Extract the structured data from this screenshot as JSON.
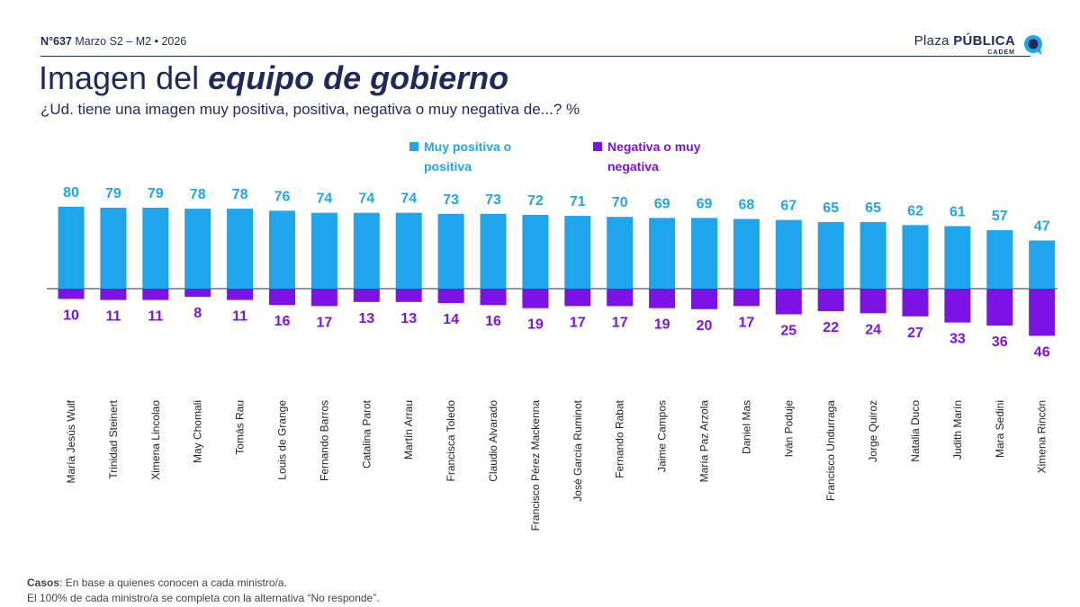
{
  "header": {
    "edition_number": "N°637",
    "edition_detail": "Marzo S2 – M2 • 2026",
    "brand_light": "Plaza ",
    "brand_bold": "PÚBLICA",
    "brand_sub": "CADEM"
  },
  "title": {
    "plain": "Imagen del ",
    "emphasis": "equipo de gobierno"
  },
  "subtitle": "¿Ud. tiene una imagen muy positiva, positiva, negativa o muy negativa de...? %",
  "footnote": {
    "label": "Casos",
    "line1": ": En base a quienes conocen a cada ministro/a.",
    "line2": "El 100% de cada ministro/a se completa con la alternativa “No responde”."
  },
  "colors": {
    "positive": "#1ea5ec",
    "negative": "#7c12e3",
    "axis": "#1f2a5c"
  },
  "chart_data": {
    "type": "bar",
    "categories": [
      "María Jesús Wulf",
      "Trinidad Steinert",
      "Ximena Lincolao",
      "May Chomali",
      "Tomás Rau",
      "Louis de Grange",
      "Fernando Barros",
      "Catalina Parot",
      "Martín Arrau",
      "Francisca Toledo",
      "Claudio Alvarado",
      "Francisco Pérez Mackenna",
      "José García Ruminot",
      "Fernando Rabat",
      "Jaime Campos",
      "María Paz Arzola",
      "Daniel Mas",
      "Iván Poduje",
      "Francisco Undurraga",
      "Jorge Quiroz",
      "Natalia Duco",
      "Judith Marín",
      "Mara Sedini",
      "Ximena Rincón"
    ],
    "series": [
      {
        "name": "Muy positiva o positiva",
        "values": [
          80,
          79,
          79,
          78,
          78,
          76,
          74,
          74,
          74,
          73,
          73,
          72,
          71,
          70,
          69,
          69,
          68,
          67,
          65,
          65,
          62,
          61,
          57,
          47
        ]
      },
      {
        "name": "Negativa o muy negativa",
        "values": [
          10,
          11,
          11,
          8,
          11,
          16,
          17,
          13,
          13,
          14,
          16,
          19,
          17,
          17,
          19,
          20,
          17,
          25,
          22,
          24,
          27,
          33,
          36,
          46
        ]
      }
    ],
    "legend": [
      "Muy positiva o positiva",
      "Negativa o muy negativa"
    ],
    "legend_position": "top-center",
    "grid": false
  }
}
